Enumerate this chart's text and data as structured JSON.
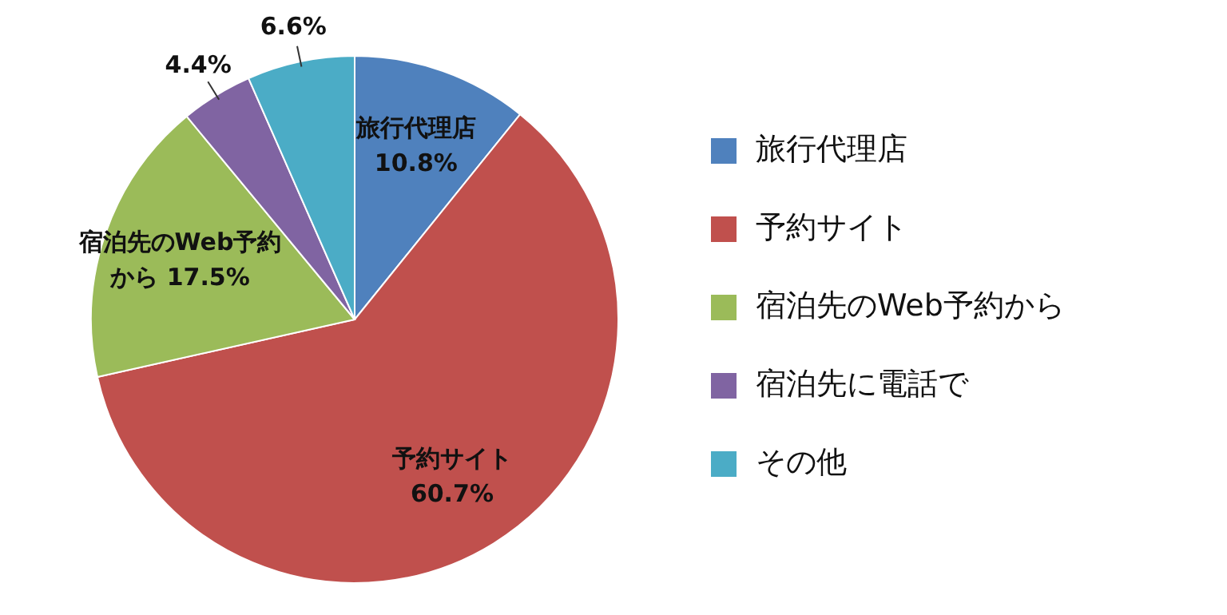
{
  "chart_data": {
    "type": "pie",
    "categories": [
      "旅行代理店",
      "予約サイト",
      "宿泊先のWeb予約から",
      "宿泊先に電話で",
      "その他"
    ],
    "values": [
      10.8,
      60.7,
      17.5,
      4.4,
      6.6
    ],
    "colors": [
      "#4f81bd",
      "#c0504d",
      "#9bbb59",
      "#8064a2",
      "#4bacc6"
    ],
    "value_labels": [
      "旅行代理店 10.8%",
      "予約サイト 60.7%",
      "宿泊先のWeb予約から 17.5%",
      "4.4%",
      "6.6%"
    ],
    "legend": "right"
  }
}
